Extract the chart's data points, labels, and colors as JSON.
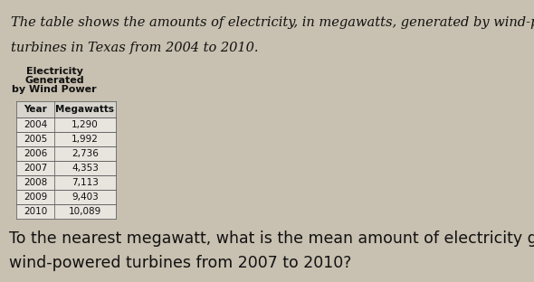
{
  "title_line1": "The table shows the amounts of electricity, in megawatts, generated by wind-powered",
  "title_line2": "turbines in Texas from 2004 to 2010.",
  "table_title_line1": "Electricity",
  "table_title_line2": "Generated",
  "table_title_line3": "by Wind Power",
  "col_headers": [
    "Year",
    "Megawatts"
  ],
  "rows": [
    [
      "2004",
      "1,290"
    ],
    [
      "2005",
      "1,992"
    ],
    [
      "2006",
      "2,736"
    ],
    [
      "2007",
      "4,353"
    ],
    [
      "2008",
      "7,113"
    ],
    [
      "2009",
      "9,403"
    ],
    [
      "2010",
      "10,089"
    ]
  ],
  "question_line1": "To the nearest megawatt, what is the mean amount of electricity generated in Texas by",
  "question_line2": "wind-powered turbines from 2007 to 2010?",
  "bg_color": "#c8c0b0",
  "table_bg": "#e8e4de",
  "header_bg": "#d8d4ce",
  "font_color": "#111111",
  "title_fontsize": 10.5,
  "question_fontsize": 12.5,
  "table_fontsize": 7.5,
  "table_title_fontsize": 8.0
}
